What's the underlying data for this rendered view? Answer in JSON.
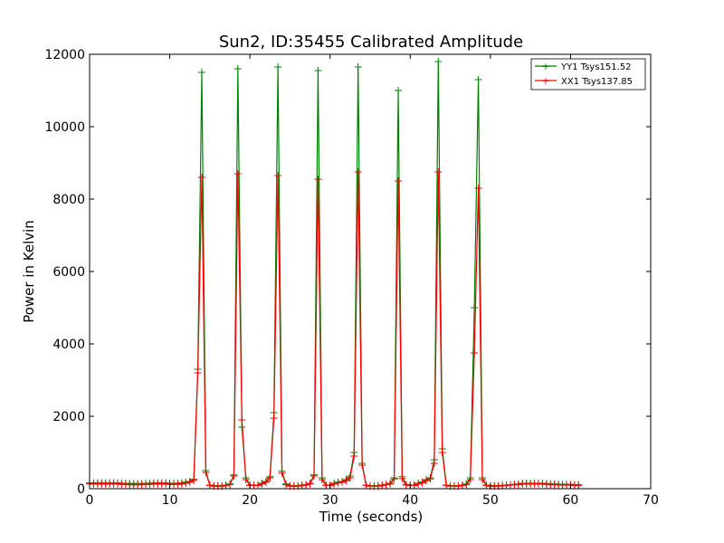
{
  "chart_data": {
    "type": "line",
    "title": "Sun2, ID:35455 Calibrated Amplitude",
    "xlabel": "Time (seconds)",
    "ylabel": "Power in Kelvin",
    "xlim": [
      0,
      70
    ],
    "ylim": [
      0,
      12000
    ],
    "xticks": [
      0,
      10,
      20,
      30,
      40,
      50,
      60,
      70
    ],
    "yticks": [
      0,
      2000,
      4000,
      6000,
      8000,
      10000,
      12000
    ],
    "grid": false,
    "legend_position": "top-right",
    "marker": "+",
    "x": [
      0.0,
      0.5,
      1.0,
      1.5,
      2.0,
      2.5,
      3.0,
      3.5,
      4.0,
      4.5,
      5.0,
      5.5,
      6.0,
      6.5,
      7.0,
      7.5,
      8.0,
      8.5,
      9.0,
      9.5,
      10.0,
      10.5,
      11.0,
      11.5,
      12.0,
      12.5,
      13.0,
      13.5,
      14.0,
      14.5,
      15.0,
      15.5,
      16.0,
      16.5,
      17.0,
      17.5,
      18.0,
      18.5,
      19.0,
      19.5,
      20.0,
      20.5,
      21.0,
      21.5,
      22.0,
      22.5,
      23.0,
      23.5,
      24.0,
      24.5,
      25.0,
      25.5,
      26.0,
      26.5,
      27.0,
      27.5,
      28.0,
      28.5,
      29.0,
      29.5,
      30.0,
      30.5,
      31.0,
      31.5,
      32.0,
      32.5,
      33.0,
      33.5,
      34.0,
      34.5,
      35.0,
      35.5,
      36.0,
      36.5,
      37.0,
      37.5,
      38.0,
      38.5,
      39.0,
      39.5,
      40.0,
      40.5,
      41.0,
      41.5,
      42.0,
      42.5,
      43.0,
      43.5,
      44.0,
      44.5,
      45.0,
      45.5,
      46.0,
      46.5,
      47.0,
      47.5,
      48.0,
      48.5,
      49.0,
      49.5,
      50.0,
      50.5,
      51.0,
      51.5,
      52.0,
      52.5,
      53.0,
      53.5,
      54.0,
      54.5,
      55.0,
      55.5,
      56.0,
      56.5,
      57.0,
      57.5,
      58.0,
      58.5,
      59.0,
      59.5,
      60.0,
      60.5,
      61.0
    ],
    "series": [
      {
        "name": "YY1 Tsys151.52",
        "color": "#008000",
        "values": [
          160,
          160,
          160,
          160,
          160,
          160,
          160,
          160,
          150,
          150,
          140,
          140,
          140,
          140,
          150,
          150,
          160,
          160,
          160,
          160,
          150,
          150,
          150,
          160,
          180,
          200,
          260,
          3300,
          11500,
          500,
          100,
          80,
          80,
          80,
          100,
          130,
          380,
          11600,
          1700,
          300,
          100,
          100,
          100,
          150,
          200,
          330,
          2100,
          11650,
          480,
          130,
          80,
          80,
          80,
          100,
          110,
          150,
          380,
          11550,
          300,
          100,
          100,
          150,
          180,
          200,
          250,
          350,
          1000,
          11650,
          700,
          100,
          80,
          80,
          80,
          100,
          120,
          150,
          300,
          11000,
          330,
          120,
          100,
          100,
          150,
          180,
          250,
          300,
          800,
          11800,
          1100,
          100,
          80,
          80,
          80,
          100,
          130,
          300,
          5000,
          11300,
          300,
          100,
          80,
          80,
          80,
          90,
          100,
          110,
          120,
          130,
          150,
          150,
          150,
          150,
          150,
          150,
          140,
          130,
          130,
          120,
          120,
          120,
          120,
          110,
          110
        ]
      },
      {
        "name": "XX1 Tsys137.85",
        "color": "#ff0000",
        "values": [
          130,
          130,
          130,
          130,
          130,
          130,
          130,
          130,
          120,
          120,
          110,
          110,
          110,
          110,
          120,
          120,
          130,
          130,
          130,
          130,
          120,
          120,
          120,
          130,
          150,
          180,
          230,
          3200,
          8600,
          450,
          90,
          70,
          70,
          70,
          90,
          110,
          350,
          8700,
          1900,
          250,
          90,
          90,
          90,
          130,
          180,
          300,
          1950,
          8650,
          430,
          110,
          70,
          70,
          70,
          90,
          100,
          130,
          350,
          8550,
          250,
          90,
          90,
          130,
          160,
          180,
          220,
          300,
          900,
          8750,
          650,
          90,
          70,
          70,
          70,
          90,
          110,
          130,
          270,
          8500,
          280,
          100,
          90,
          90,
          130,
          160,
          220,
          270,
          700,
          8750,
          1000,
          90,
          70,
          70,
          70,
          90,
          110,
          250,
          3750,
          8300,
          250,
          90,
          70,
          70,
          70,
          80,
          90,
          100,
          110,
          110,
          130,
          130,
          130,
          130,
          130,
          130,
          120,
          110,
          110,
          100,
          100,
          100,
          100,
          90,
          90
        ]
      }
    ]
  }
}
